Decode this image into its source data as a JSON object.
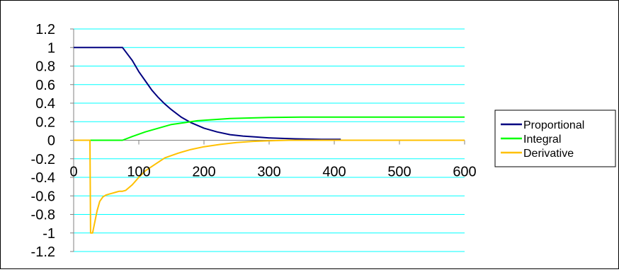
{
  "chart_data": {
    "type": "line",
    "title": "",
    "xlabel": "",
    "ylabel": "",
    "xlim": [
      0,
      600
    ],
    "ylim": [
      -1.2,
      1.2
    ],
    "x_ticks": [
      0,
      100,
      200,
      300,
      400,
      500,
      600
    ],
    "y_ticks": [
      1.2,
      1,
      0.8,
      0.6,
      0.4,
      0.2,
      0,
      -0.2,
      -0.4,
      -0.6,
      -0.8,
      -1,
      -1.2
    ],
    "y_tick_labels": [
      "1.2",
      "1",
      "0.8",
      "0.6",
      "0.4",
      "0.2",
      "0",
      "-0.2",
      "-0.4",
      "-0.6",
      "-0.8",
      "-1",
      "-1.2"
    ],
    "x_tick_labels": [
      "0",
      "100",
      "200",
      "300",
      "400",
      "500",
      "600"
    ],
    "gridlines": "horizontal",
    "grid_color": "#00ffff",
    "legend_position": "right",
    "series": [
      {
        "name": "Proportional",
        "color": "#000080",
        "x": [
          0,
          75,
          90,
          100,
          110,
          120,
          130,
          140,
          150,
          165,
          180,
          200,
          220,
          240,
          260,
          280,
          300,
          320,
          340,
          360,
          380,
          410
        ],
        "y": [
          1,
          1,
          0.86,
          0.74,
          0.64,
          0.54,
          0.46,
          0.39,
          0.33,
          0.25,
          0.19,
          0.13,
          0.09,
          0.06,
          0.045,
          0.035,
          0.025,
          0.02,
          0.015,
          0.012,
          0.01,
          0.01
        ]
      },
      {
        "name": "Integral",
        "color": "#00ff00",
        "x": [
          0,
          75,
          90,
          110,
          130,
          150,
          170,
          190,
          210,
          240,
          270,
          300,
          350,
          400,
          500,
          600
        ],
        "y": [
          0,
          0,
          0.04,
          0.09,
          0.13,
          0.17,
          0.19,
          0.21,
          0.22,
          0.235,
          0.24,
          0.245,
          0.25,
          0.25,
          0.25,
          0.25
        ]
      },
      {
        "name": "Derivative",
        "color": "#ffc000",
        "x": [
          0,
          25,
          26,
          29,
          32,
          36,
          40,
          45,
          50,
          55,
          60,
          65,
          70,
          75,
          80,
          90,
          100,
          110,
          125,
          140,
          160,
          180,
          200,
          225,
          250,
          275,
          300,
          330,
          360,
          400,
          500,
          600
        ],
        "y": [
          0,
          0,
          -1,
          -1,
          -0.9,
          -0.76,
          -0.66,
          -0.61,
          -0.59,
          -0.58,
          -0.57,
          -0.56,
          -0.55,
          -0.55,
          -0.54,
          -0.48,
          -0.4,
          -0.33,
          -0.26,
          -0.19,
          -0.14,
          -0.1,
          -0.07,
          -0.045,
          -0.025,
          -0.012,
          -0.006,
          0,
          0,
          0,
          0,
          0
        ]
      }
    ]
  }
}
